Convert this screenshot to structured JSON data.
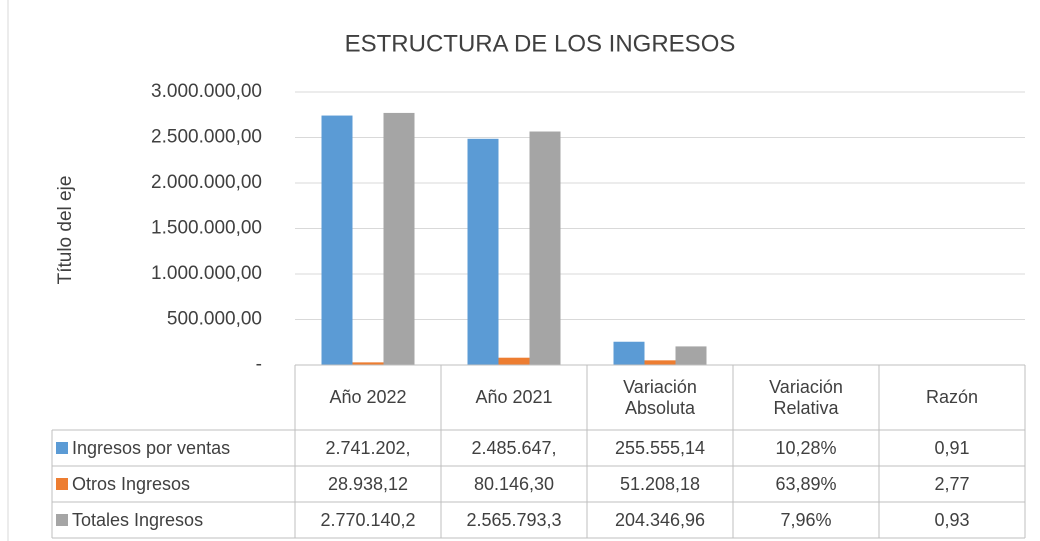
{
  "chart_data": {
    "type": "bar",
    "title": "ESTRUCTURA DE LOS INGRESOS",
    "y_axis_title": "Título del eje",
    "categories": [
      "Año 2022",
      "Año 2021",
      "Variación Absoluta",
      "Variación Relativa",
      "Razón"
    ],
    "series": [
      {
        "name": "Ingresos por ventas",
        "color": "#5b9bd5",
        "values": [
          2741202,
          2485647,
          255555.14,
          0.1028,
          0.91
        ],
        "value_labels": [
          "2.741.202,",
          "2.485.647,",
          "255.555,14",
          "10,28%",
          "0,91"
        ]
      },
      {
        "name": "Otros Ingresos",
        "color": "#ed7d31",
        "values": [
          28938.12,
          80146.3,
          51208.18,
          0.6389,
          2.77
        ],
        "value_labels": [
          "28.938,12",
          "80.146,30",
          "51.208,18",
          "63,89%",
          "2,77"
        ]
      },
      {
        "name": "Totales Ingresos",
        "color": "#a5a5a5",
        "values": [
          2770140.2,
          2565793.3,
          204346.96,
          0.0796,
          0.93
        ],
        "value_labels": [
          "2.770.140,2",
          "2.565.793,3",
          "204.346,96",
          "7,96%",
          "0,93"
        ]
      }
    ],
    "ylim": [
      0,
      3000000
    ],
    "yticks": [
      {
        "value": 0,
        "label": "-"
      },
      {
        "value": 500000,
        "label": "500.000,00"
      },
      {
        "value": 1000000,
        "label": "1.000.000,00"
      },
      {
        "value": 1500000,
        "label": "1.500.000,00"
      },
      {
        "value": 2000000,
        "label": "2.000.000,00"
      },
      {
        "value": 2500000,
        "label": "2.500.000,00"
      },
      {
        "value": 3000000,
        "label": "3.000.000,00"
      }
    ],
    "grid": true
  }
}
